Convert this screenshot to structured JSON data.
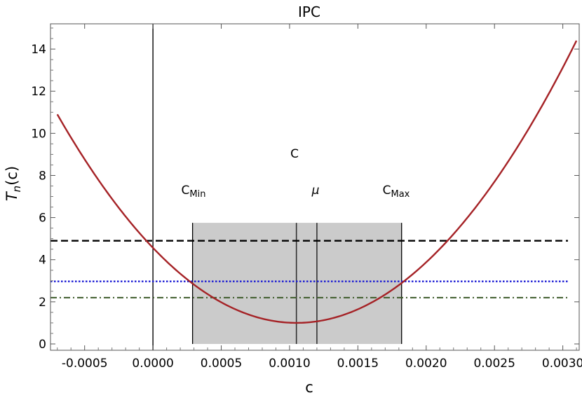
{
  "chart_data": {
    "type": "line",
    "title": "IPC",
    "xlabel": "c",
    "ylabel": "T",
    "ylabel_sub": "n",
    "ylabel_tail": "(c)",
    "xlim": [
      -0.00075,
      0.00312
    ],
    "ylim": [
      -0.3,
      15.2
    ],
    "x_ticks": [
      -0.0005,
      0.0,
      0.0005,
      0.001,
      0.0015,
      0.002,
      0.0025,
      0.003
    ],
    "x_tick_labels": [
      "-0.0005",
      "0.0000",
      "0.0005",
      "0.0010",
      "0.0015",
      "0.0020",
      "0.0025",
      "0.0030"
    ],
    "y_ticks": [
      0,
      2,
      4,
      6,
      8,
      10,
      12,
      14
    ],
    "y_tick_labels": [
      "0",
      "2",
      "4",
      "6",
      "8",
      "10",
      "12",
      "14"
    ],
    "curve": {
      "color": "#a52226",
      "vertex_x": 0.00105,
      "vertex_y": 1.0,
      "x_start": -0.0007,
      "x_end": 0.0031,
      "description_points": [
        [
          -0.0007,
          10.9
        ],
        [
          0.0,
          4.85
        ],
        [
          0.00105,
          1.0
        ],
        [
          0.0022,
          4.9
        ],
        [
          0.0031,
          14.4
        ]
      ]
    },
    "hlines": [
      {
        "y": 4.9,
        "style": "dashed",
        "color": "#000000"
      },
      {
        "y": 2.97,
        "style": "dotted",
        "color": "#1a1ad4"
      },
      {
        "y": 2.2,
        "style": "dashdot",
        "color": "#3c5a2a"
      }
    ],
    "vline_zero": 0.0,
    "region": {
      "x0": 0.00029,
      "x1": 0.00182,
      "y0": 0,
      "y1": 5.75,
      "color": "#cbcbcb"
    },
    "inner_lines": [
      0.00105,
      0.0012
    ],
    "annotations": {
      "c_label": "C",
      "c_min_main": "C",
      "c_min_sub": "Min",
      "mu": "μ",
      "c_max_main": "C",
      "c_max_sub": "Max"
    },
    "grid": false,
    "legend": "none"
  }
}
